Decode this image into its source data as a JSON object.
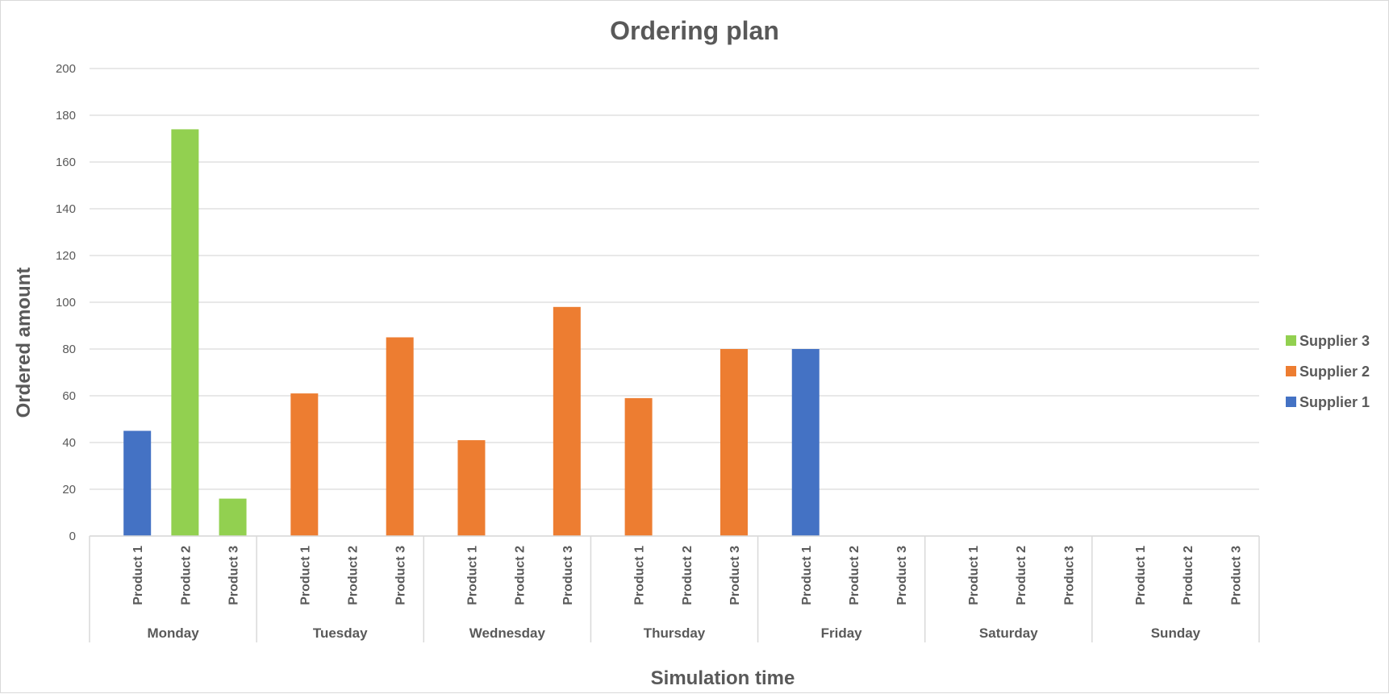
{
  "chart_data": {
    "type": "bar",
    "title": "Ordering plan",
    "xlabel": "Simulation time",
    "ylabel": "Ordered amount",
    "ylim": [
      0,
      200
    ],
    "yticks": [
      0,
      20,
      40,
      60,
      80,
      100,
      120,
      140,
      160,
      180,
      200
    ],
    "grid": true,
    "legend_position": "right",
    "groups": [
      "Monday",
      "Tuesday",
      "Wednesday",
      "Thursday",
      "Friday",
      "Saturday",
      "Sunday"
    ],
    "subcategories": [
      "Product 1",
      "Product 2",
      "Product 3"
    ],
    "series": [
      {
        "name": "Supplier 1",
        "color": "#4472C4",
        "values": [
          [
            45,
            0,
            0
          ],
          [
            0,
            0,
            0
          ],
          [
            0,
            0,
            0
          ],
          [
            0,
            0,
            0
          ],
          [
            80,
            0,
            0
          ],
          [
            0,
            0,
            0
          ],
          [
            0,
            0,
            0
          ]
        ]
      },
      {
        "name": "Supplier 2",
        "color": "#ED7D31",
        "values": [
          [
            0,
            0,
            0
          ],
          [
            61,
            0,
            85
          ],
          [
            41,
            0,
            98
          ],
          [
            59,
            0,
            80
          ],
          [
            0,
            0,
            0
          ],
          [
            0,
            0,
            0
          ],
          [
            0,
            0,
            0
          ]
        ]
      },
      {
        "name": "Supplier 3",
        "color": "#92D050",
        "values": [
          [
            0,
            174,
            16
          ],
          [
            0,
            0,
            0
          ],
          [
            0,
            0,
            0
          ],
          [
            0,
            0,
            0
          ],
          [
            0,
            0,
            0
          ],
          [
            0,
            0,
            0
          ],
          [
            0,
            0,
            0
          ]
        ]
      }
    ],
    "legend_order": [
      "Supplier 3",
      "Supplier 2",
      "Supplier 1"
    ]
  }
}
